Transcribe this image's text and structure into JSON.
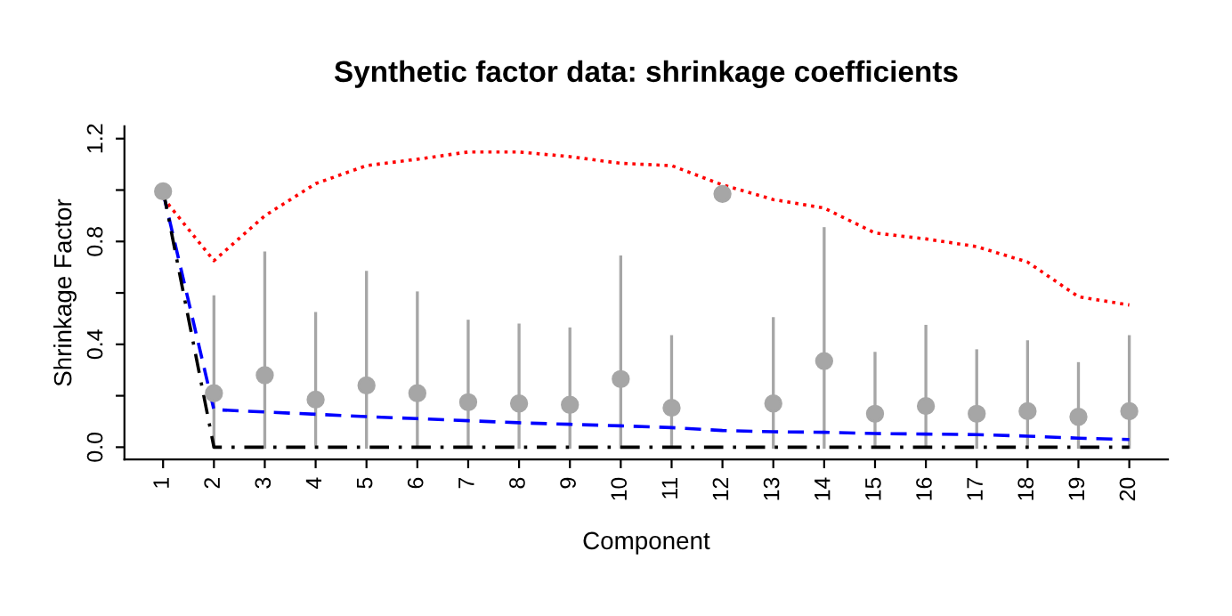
{
  "chart_data": {
    "type": "line",
    "title": "Synthetic factor data: shrinkage coefficients",
    "xlabel": "Component",
    "ylabel": "Shrinkage Factor",
    "x": [
      1,
      2,
      3,
      4,
      5,
      6,
      7,
      8,
      9,
      10,
      11,
      12,
      13,
      14,
      15,
      16,
      17,
      18,
      19,
      20
    ],
    "xlim": [
      0.24,
      20.76
    ],
    "xticks": [
      1,
      2,
      3,
      4,
      5,
      6,
      7,
      8,
      9,
      10,
      11,
      12,
      13,
      14,
      15,
      16,
      17,
      18,
      19,
      20
    ],
    "ylim": [
      -0.048,
      1.248
    ],
    "yticks": [
      {
        "value": 0,
        "label": "0.0"
      },
      {
        "value": 0.2,
        "label": null
      },
      {
        "value": 0.4,
        "label": "0.4"
      },
      {
        "value": 0.6,
        "label": null
      },
      {
        "value": 0.8,
        "label": "0.8"
      },
      {
        "value": 1.0,
        "label": null
      },
      {
        "value": 1.2,
        "label": "1.2"
      }
    ],
    "grid": false,
    "legend": false,
    "series": [
      {
        "type": "scatter",
        "color": "#a6a6a6",
        "marker": "circle",
        "values": [
          0.995,
          0.21,
          0.28,
          0.185,
          0.24,
          0.21,
          0.175,
          0.17,
          0.165,
          0.265,
          0.153,
          0.985,
          0.17,
          0.335,
          0.13,
          0.16,
          0.13,
          0.14,
          0.118,
          0.14
        ],
        "errors": [
          null,
          [
            0,
            0.585
          ],
          [
            0,
            0.755
          ],
          [
            0,
            0.52
          ],
          [
            0,
            0.68
          ],
          [
            0,
            0.6
          ],
          [
            0,
            0.49
          ],
          [
            0,
            0.475
          ],
          [
            0,
            0.46
          ],
          [
            0,
            0.74
          ],
          [
            0,
            0.43
          ],
          null,
          [
            0,
            0.5
          ],
          [
            0,
            0.85
          ],
          [
            0,
            0.365
          ],
          [
            0,
            0.47
          ],
          [
            0,
            0.375
          ],
          [
            0,
            0.41
          ],
          [
            0,
            0.325
          ],
          [
            0,
            0.43
          ]
        ]
      },
      {
        "color": "#ff0000",
        "line_style": "dotted",
        "values": [
          0.97,
          0.725,
          0.9,
          1.025,
          1.095,
          1.12,
          1.148,
          1.148,
          1.13,
          1.104,
          1.095,
          1.02,
          0.963,
          0.93,
          0.833,
          0.81,
          0.78,
          0.72,
          0.585,
          0.553
        ]
      },
      {
        "color": "#0000ff",
        "line_style": "dashed",
        "values": [
          0.99,
          0.146,
          0.137,
          0.128,
          0.119,
          0.111,
          0.103,
          0.095,
          0.089,
          0.083,
          0.076,
          0.065,
          0.06,
          0.058,
          0.053,
          0.051,
          0.049,
          0.043,
          0.035,
          0.03
        ]
      },
      {
        "color": "#000000",
        "line_style": "dashdot",
        "values": [
          1.0,
          0,
          0,
          0,
          0,
          0,
          0,
          0,
          0,
          0,
          0,
          0,
          0,
          0,
          0,
          0,
          0,
          0,
          0,
          0
        ]
      }
    ]
  }
}
